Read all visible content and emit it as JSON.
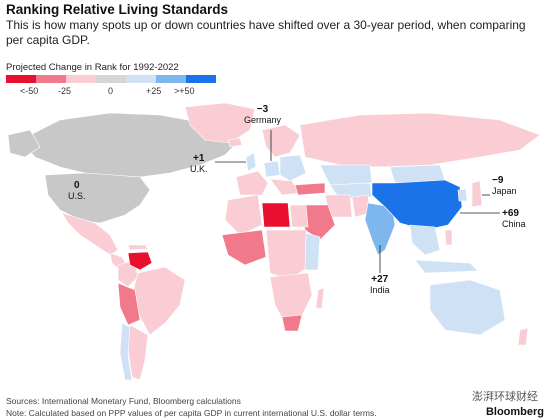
{
  "title": "Ranking Relative Living Standards",
  "subtitle": "This is how many spots up or down countries have shifted over a 30-year period, when comparing per capita GDP.",
  "legend": {
    "title": "Projected Change in Rank for 1992-2022",
    "ticks": [
      "<-50",
      "-25",
      "0",
      "+25",
      ">+50"
    ],
    "colors": [
      "#e8102e",
      "#f07a8c",
      "#f9cdd3",
      "#d6d6d6",
      "#cfe2f5",
      "#7eb6ee",
      "#1a73e8"
    ]
  },
  "colors": {
    "ocean": "#ffffff",
    "neutral": "#c8c8c8",
    "light_red": "#f9cdd3",
    "mid_red": "#f07a8c",
    "strong_red": "#e8102e",
    "light_blue": "#cfe2f5",
    "mid_blue": "#7eb6ee",
    "strong_blue": "#1a73e8"
  },
  "labels": {
    "us": {
      "value": "0",
      "name": "U.S."
    },
    "uk": {
      "value": "+1",
      "name": "U.K."
    },
    "germany": {
      "value": "−3",
      "name": "Germany"
    },
    "japan": {
      "value": "−9",
      "name": "Japan"
    },
    "china": {
      "value": "+69",
      "name": "China"
    },
    "india": {
      "value": "+27",
      "name": "India"
    }
  },
  "source": "Sources: International Monetary Fund, Bloomberg calculations",
  "note": "Note: Calculated based on PPP values of per capita GDP in current international U.S. dollar terms.",
  "brand": "Bloomberg",
  "watermark": "澎湃环球财经"
}
